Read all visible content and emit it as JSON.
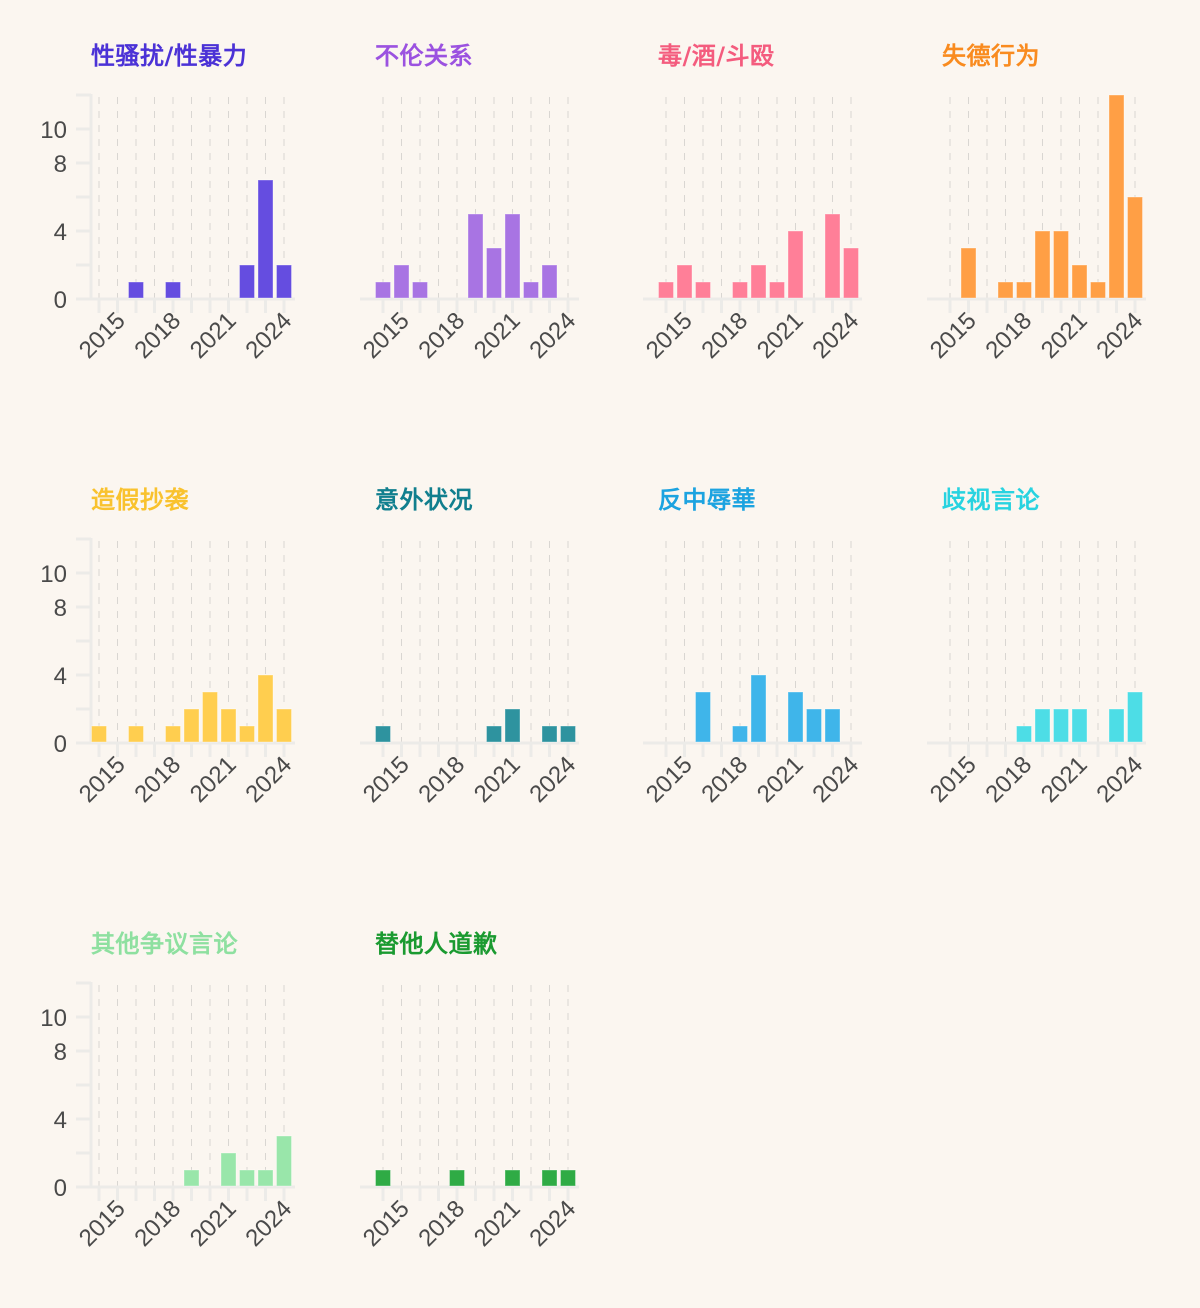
{
  "chart_data": [
    {
      "type": "bar",
      "title": "性骚扰/性暴力",
      "title_color": "#4b32d6",
      "bar_color": "#654de0",
      "x": [
        2014,
        2015,
        2016,
        2017,
        2018,
        2019,
        2020,
        2021,
        2022,
        2023,
        2024
      ],
      "values": [
        0,
        0,
        1,
        0,
        1,
        0,
        0,
        0,
        2,
        7,
        2
      ],
      "xticks": [
        "2015",
        "2018",
        "2021",
        "2024"
      ],
      "yticks": [
        "0",
        "4",
        "8",
        "10"
      ],
      "ylim": [
        0,
        12
      ],
      "show_y_axis": true,
      "grid": "vertical-dashed"
    },
    {
      "type": "bar",
      "title": "不伦关系",
      "title_color": "#9b52e0",
      "bar_color": "#a874e3",
      "x": [
        2014,
        2015,
        2016,
        2017,
        2018,
        2019,
        2020,
        2021,
        2022,
        2023,
        2024
      ],
      "values": [
        1,
        2,
        1,
        0,
        0,
        5,
        3,
        5,
        1,
        2,
        0
      ],
      "xticks": [
        "2015",
        "2018",
        "2021",
        "2024"
      ],
      "yticks": [],
      "ylim": [
        0,
        12
      ],
      "show_y_axis": false,
      "grid": "vertical-dashed"
    },
    {
      "type": "bar",
      "title": "毒/酒/斗殴",
      "title_color": "#f45c7e",
      "bar_color": "#ff7f98",
      "x": [
        2014,
        2015,
        2016,
        2017,
        2018,
        2019,
        2020,
        2021,
        2022,
        2023,
        2024
      ],
      "values": [
        1,
        2,
        1,
        0,
        1,
        2,
        1,
        4,
        0,
        5,
        3
      ],
      "xticks": [
        "2015",
        "2018",
        "2021",
        "2024"
      ],
      "yticks": [],
      "ylim": [
        0,
        12
      ],
      "show_y_axis": false,
      "grid": "vertical-dashed"
    },
    {
      "type": "bar",
      "title": "失德行为",
      "title_color": "#f98b1f",
      "bar_color": "#ff9f45",
      "x": [
        2014,
        2015,
        2016,
        2017,
        2018,
        2019,
        2020,
        2021,
        2022,
        2023,
        2024
      ],
      "values": [
        0,
        3,
        0,
        1,
        1,
        4,
        4,
        2,
        1,
        12,
        6
      ],
      "xticks": [
        "2015",
        "2018",
        "2021",
        "2024"
      ],
      "yticks": [],
      "ylim": [
        0,
        12
      ],
      "show_y_axis": false,
      "grid": "vertical-dashed"
    },
    {
      "type": "bar",
      "title": "造假抄袭",
      "title_color": "#f9c22e",
      "bar_color": "#ffce4f",
      "x": [
        2014,
        2015,
        2016,
        2017,
        2018,
        2019,
        2020,
        2021,
        2022,
        2023,
        2024
      ],
      "values": [
        1,
        0,
        1,
        0,
        1,
        2,
        3,
        2,
        1,
        4,
        2
      ],
      "xticks": [
        "2015",
        "2018",
        "2021",
        "2024"
      ],
      "yticks": [
        "0",
        "4",
        "8",
        "10"
      ],
      "ylim": [
        0,
        12
      ],
      "show_y_axis": true,
      "grid": "vertical-dashed"
    },
    {
      "type": "bar",
      "title": "意外状况",
      "title_color": "#117f8e",
      "bar_color": "#2e939f",
      "x": [
        2014,
        2015,
        2016,
        2017,
        2018,
        2019,
        2020,
        2021,
        2022,
        2023,
        2024
      ],
      "values": [
        1,
        0,
        0,
        0,
        0,
        0,
        1,
        2,
        0,
        1,
        1
      ],
      "xticks": [
        "2015",
        "2018",
        "2021",
        "2024"
      ],
      "yticks": [],
      "ylim": [
        0,
        12
      ],
      "show_y_axis": false,
      "grid": "vertical-dashed"
    },
    {
      "type": "bar",
      "title": "反中辱華",
      "title_color": "#1ca3e0",
      "bar_color": "#3fb5ea",
      "x": [
        2014,
        2015,
        2016,
        2017,
        2018,
        2019,
        2020,
        2021,
        2022,
        2023,
        2024
      ],
      "values": [
        0,
        0,
        3,
        0,
        1,
        4,
        0,
        3,
        2,
        2,
        0
      ],
      "xticks": [
        "2015",
        "2018",
        "2021",
        "2024"
      ],
      "yticks": [],
      "ylim": [
        0,
        12
      ],
      "show_y_axis": false,
      "grid": "vertical-dashed"
    },
    {
      "type": "bar",
      "title": "歧视言论",
      "title_color": "#28d3e0",
      "bar_color": "#4ddde6",
      "x": [
        2014,
        2015,
        2016,
        2017,
        2018,
        2019,
        2020,
        2021,
        2022,
        2023,
        2024
      ],
      "values": [
        0,
        0,
        0,
        0,
        1,
        2,
        2,
        2,
        0,
        2,
        3
      ],
      "xticks": [
        "2015",
        "2018",
        "2021",
        "2024"
      ],
      "yticks": [],
      "ylim": [
        0,
        12
      ],
      "show_y_axis": false,
      "grid": "vertical-dashed"
    },
    {
      "type": "bar",
      "title": "其他争议言论",
      "title_color": "#8ee0a0",
      "bar_color": "#99e6aa",
      "x": [
        2014,
        2015,
        2016,
        2017,
        2018,
        2019,
        2020,
        2021,
        2022,
        2023,
        2024
      ],
      "values": [
        0,
        0,
        0,
        0,
        0,
        1,
        0,
        2,
        1,
        1,
        3
      ],
      "xticks": [
        "2015",
        "2018",
        "2021",
        "2024"
      ],
      "yticks": [
        "0",
        "4",
        "8",
        "10"
      ],
      "ylim": [
        0,
        12
      ],
      "show_y_axis": true,
      "grid": "vertical-dashed"
    },
    {
      "type": "bar",
      "title": "替他人道歉",
      "title_color": "#1a9a30",
      "bar_color": "#2fab45",
      "x": [
        2014,
        2015,
        2016,
        2017,
        2018,
        2019,
        2020,
        2021,
        2022,
        2023,
        2024
      ],
      "values": [
        1,
        0,
        0,
        0,
        1,
        0,
        0,
        1,
        0,
        1,
        1
      ],
      "xticks": [
        "2015",
        "2018",
        "2021",
        "2024"
      ],
      "yticks": [],
      "ylim": [
        0,
        12
      ],
      "show_y_axis": false,
      "grid": "vertical-dashed"
    }
  ]
}
